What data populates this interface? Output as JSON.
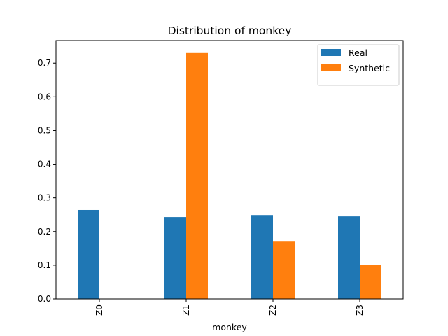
{
  "chart_data": {
    "type": "bar",
    "title": "Distribution of monkey",
    "xlabel": "monkey",
    "ylabel": "",
    "categories": [
      "Z0",
      "Z1",
      "Z2",
      "Z3"
    ],
    "series": [
      {
        "name": "Real",
        "color": "#1f77b4",
        "values": [
          0.264,
          0.243,
          0.249,
          0.245
        ]
      },
      {
        "name": "Synthetic",
        "color": "#ff7f0e",
        "values": [
          0.0,
          0.73,
          0.17,
          0.1
        ]
      }
    ],
    "ylim": [
      0,
      0.767
    ],
    "yticks": [
      "0.0",
      "0.1",
      "0.2",
      "0.3",
      "0.4",
      "0.5",
      "0.6",
      "0.7"
    ],
    "legend": "top-right",
    "grid": false
  }
}
